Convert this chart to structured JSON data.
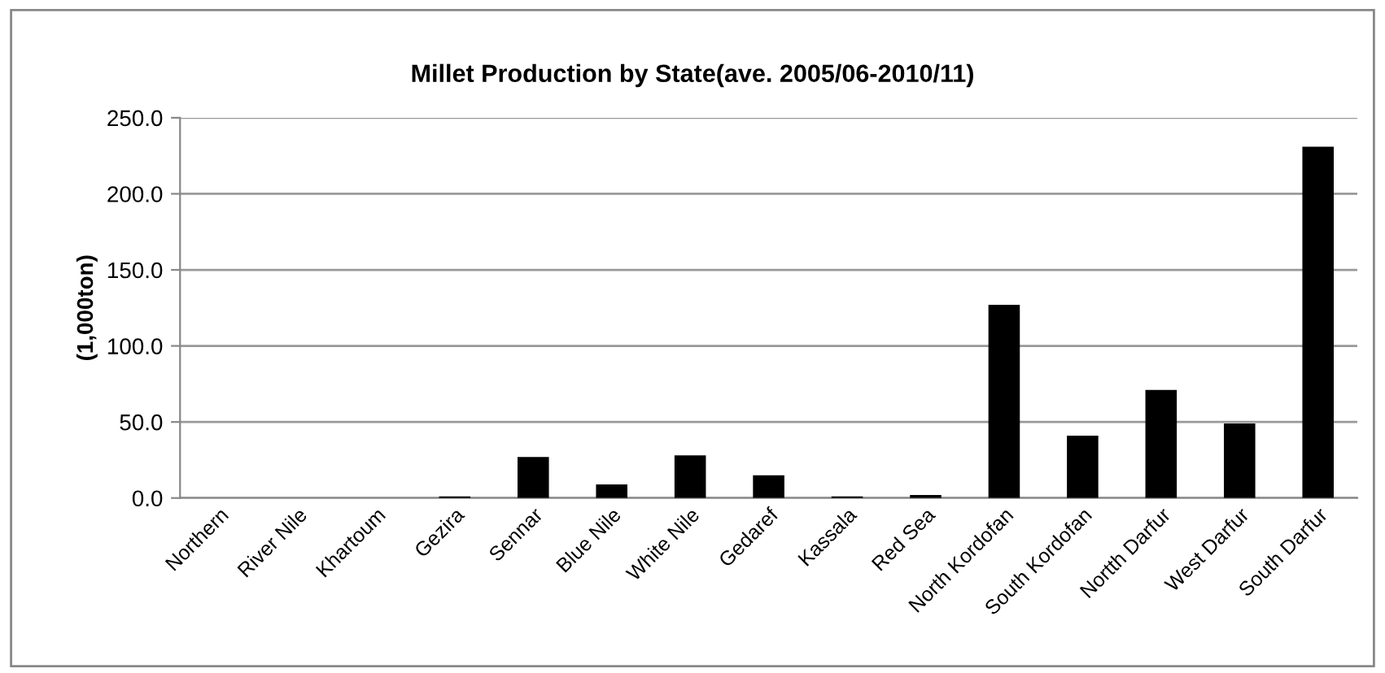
{
  "chart_data": {
    "type": "bar",
    "title": "Millet Production by State(ave. 2005/06-2010/11)",
    "ylabel": "(1,000ton)",
    "categories": [
      "Northern",
      "River Nile",
      "Khartoum",
      "Gezira",
      "Sennar",
      "Blue Nile",
      "White Nile",
      "Gedaref",
      "Kassala",
      "Red Sea",
      "North Kordofan",
      "South Kordofan",
      "Nortth Darfur",
      "West Darfur",
      "South Darfur"
    ],
    "values": [
      0,
      0,
      0,
      1,
      27,
      9,
      28,
      15,
      1,
      2,
      127,
      41,
      71,
      49,
      231
    ],
    "color": "#000000",
    "ylim": [
      0,
      250
    ],
    "yticks": [
      {
        "value": 0,
        "label": "0.0"
      },
      {
        "value": 50,
        "label": "50.0"
      },
      {
        "value": 100,
        "label": "100.0"
      },
      {
        "value": 150,
        "label": "150.0"
      },
      {
        "value": 200,
        "label": "200.0"
      },
      {
        "value": 250,
        "label": "250.0"
      }
    ],
    "grid": "y",
    "legend": false
  }
}
